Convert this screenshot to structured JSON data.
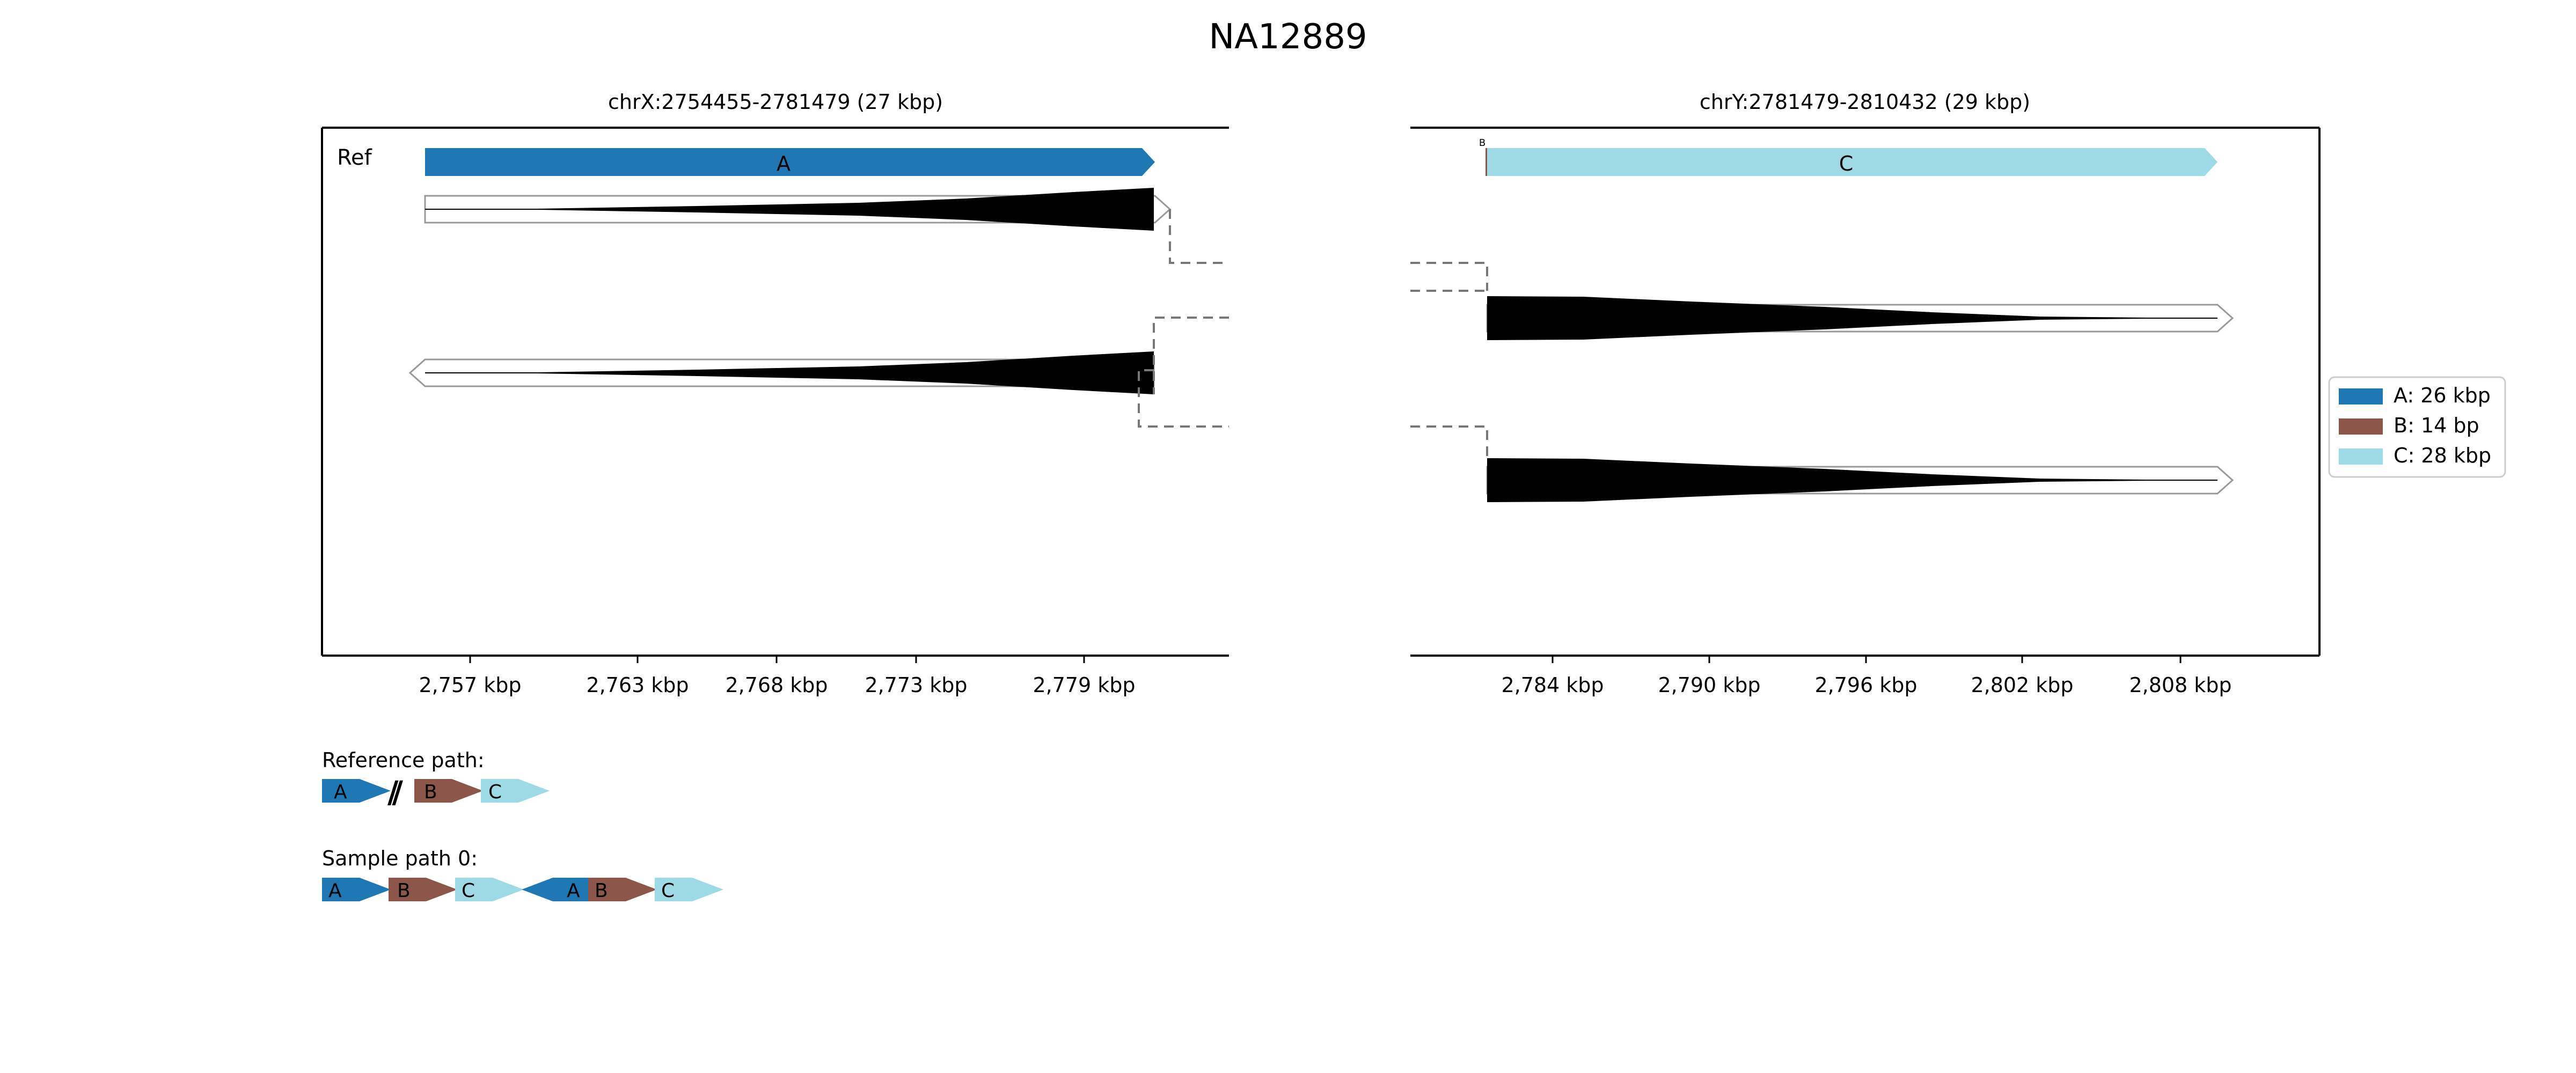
{
  "title": "NA12889",
  "colors": {
    "A": "#1f77b4",
    "B": "#8c564b",
    "C": "#9edae5",
    "alignment": "#000000",
    "read_outline": "#999999",
    "connector": "#777777"
  },
  "panels": [
    {
      "title": "chrX:2754455-2781479 (27 kbp)",
      "ref_label": "Ref",
      "ref_segment_labels": [
        "A"
      ],
      "ticks": [
        "2,757 kbp",
        "2,763 kbp",
        "2,768 kbp",
        "2,773 kbp",
        "2,779 kbp"
      ]
    },
    {
      "title": "chrY:2781479-2810432 (29 kbp)",
      "ref_segment_labels": [
        "B",
        "C"
      ],
      "ticks": [
        "2,784 kbp",
        "2,790 kbp",
        "2,796 kbp",
        "2,802 kbp",
        "2,808 kbp"
      ]
    }
  ],
  "legend": [
    {
      "label": "A: 26 kbp",
      "color": "#1f77b4"
    },
    {
      "label": "B: 14 bp",
      "color": "#8c564b"
    },
    {
      "label": "C: 28 kbp",
      "color": "#9edae5"
    }
  ],
  "paths": [
    {
      "label": "Reference path:",
      "segments": [
        "A",
        "//",
        "B",
        "C"
      ]
    },
    {
      "label": "Sample path 0:",
      "segments": [
        "A",
        "B",
        "C",
        "A",
        "B",
        "C"
      ]
    }
  ]
}
